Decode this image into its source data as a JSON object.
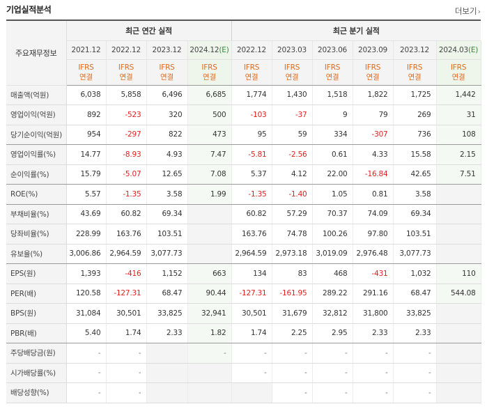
{
  "section_title": "기업실적분석",
  "more_label": "더보기",
  "row_header_label": "주요재무정보",
  "groups": {
    "annual_label": "최근 연간 실적",
    "quarterly_label": "최근 분기 실적"
  },
  "periods": [
    {
      "label": "2021.12",
      "est": "",
      "std1": "IFRS",
      "std2": "연결"
    },
    {
      "label": "2022.12",
      "est": "",
      "std1": "IFRS",
      "std2": "연결"
    },
    {
      "label": "2023.12",
      "est": "",
      "std1": "IFRS",
      "std2": "연결"
    },
    {
      "label": "2024.12",
      "est": "(E)",
      "std1": "IFRS",
      "std2": "연결"
    },
    {
      "label": "2022.12",
      "est": "",
      "std1": "IFRS",
      "std2": "연결"
    },
    {
      "label": "2023.03",
      "est": "",
      "std1": "IFRS",
      "std2": "연결"
    },
    {
      "label": "2023.06",
      "est": "",
      "std1": "IFRS",
      "std2": "연결"
    },
    {
      "label": "2023.09",
      "est": "",
      "std1": "IFRS",
      "std2": "연결"
    },
    {
      "label": "2023.12",
      "est": "",
      "std1": "IFRS",
      "std2": "연결"
    },
    {
      "label": "2024.03",
      "est": "(E)",
      "std1": "IFRS",
      "std2": "연결"
    }
  ],
  "rows": [
    {
      "label": "매출액(억원)",
      "values": [
        "6,038",
        "5,858",
        "6,496",
        "6,685",
        "1,774",
        "1,430",
        "1,518",
        "1,822",
        "1,725",
        "1,442"
      ]
    },
    {
      "label": "영업이익(억원)",
      "values": [
        "892",
        "-523",
        "320",
        "500",
        "-103",
        "-37",
        "9",
        "79",
        "269",
        "31"
      ]
    },
    {
      "label": "당기순이익(억원)",
      "values": [
        "954",
        "-297",
        "822",
        "473",
        "95",
        "59",
        "334",
        "-307",
        "736",
        "108"
      ]
    },
    {
      "label": "영업이익률(%)",
      "values": [
        "14.77",
        "-8.93",
        "4.93",
        "7.47",
        "-5.81",
        "-2.56",
        "0.61",
        "4.33",
        "15.58",
        "2.15"
      ]
    },
    {
      "label": "순이익률(%)",
      "values": [
        "15.79",
        "-5.07",
        "12.65",
        "7.08",
        "5.37",
        "4.12",
        "22.00",
        "-16.84",
        "42.65",
        "7.51"
      ]
    },
    {
      "label": "ROE(%)",
      "values": [
        "5.57",
        "-1.35",
        "3.58",
        "1.99",
        "-1.35",
        "-1.40",
        "1.05",
        "0.81",
        "3.58",
        ""
      ]
    },
    {
      "label": "부채비율(%)",
      "values": [
        "43.69",
        "60.82",
        "69.34",
        "",
        "60.82",
        "57.29",
        "70.37",
        "74.09",
        "69.34",
        ""
      ]
    },
    {
      "label": "당좌비율(%)",
      "values": [
        "228.99",
        "163.76",
        "103.51",
        "",
        "163.76",
        "74.78",
        "100.26",
        "97.80",
        "103.51",
        ""
      ]
    },
    {
      "label": "유보율(%)",
      "values": [
        "3,006.86",
        "2,964.59",
        "3,077.73",
        "",
        "2,964.59",
        "2,973.18",
        "3,019.09",
        "2,976.48",
        "3,077.73",
        ""
      ]
    },
    {
      "label": "EPS(원)",
      "values": [
        "1,393",
        "-416",
        "1,152",
        "663",
        "134",
        "83",
        "468",
        "-431",
        "1,032",
        "110"
      ]
    },
    {
      "label": "PER(배)",
      "values": [
        "120.58",
        "-127.31",
        "68.47",
        "90.44",
        "-127.31",
        "-161.95",
        "289.22",
        "291.16",
        "68.47",
        "544.08"
      ]
    },
    {
      "label": "BPS(원)",
      "values": [
        "31,084",
        "30,501",
        "33,825",
        "32,941",
        "30,501",
        "31,679",
        "32,812",
        "31,800",
        "33,825",
        ""
      ]
    },
    {
      "label": "PBR(배)",
      "values": [
        "5.40",
        "1.74",
        "2.33",
        "1.82",
        "1.74",
        "2.25",
        "2.95",
        "2.33",
        "2.33",
        ""
      ]
    },
    {
      "label": "주당배당금(원)",
      "values": [
        "-",
        "-",
        "",
        "-",
        "-",
        "-",
        "-",
        "-",
        "-",
        ""
      ]
    },
    {
      "label": "시가배당률(%)",
      "values": [
        "-",
        "-",
        "",
        "",
        "-",
        "-",
        "-",
        "-",
        "-",
        ""
      ]
    },
    {
      "label": "배당성향(%)",
      "values": [
        "-",
        "-",
        "",
        "",
        "",
        "-",
        "-",
        "-",
        "-",
        ""
      ]
    }
  ],
  "empty_cells": [
    [
      5,
      9
    ],
    [
      6,
      3
    ],
    [
      6,
      9
    ],
    [
      7,
      3
    ],
    [
      7,
      9
    ],
    [
      8,
      3
    ],
    [
      8,
      9
    ],
    [
      11,
      9
    ],
    [
      12,
      9
    ],
    [
      13,
      2
    ],
    [
      13,
      9
    ],
    [
      14,
      2
    ],
    [
      14,
      3
    ],
    [
      14,
      9
    ],
    [
      15,
      2
    ],
    [
      15,
      3
    ],
    [
      15,
      4
    ],
    [
      15,
      9
    ]
  ],
  "colors": {
    "negative": "#e11d1d",
    "accounting_std": "#e06a1c",
    "estimate_bg": "#f4faf3",
    "estimate_mark": "#2e8b3a"
  }
}
